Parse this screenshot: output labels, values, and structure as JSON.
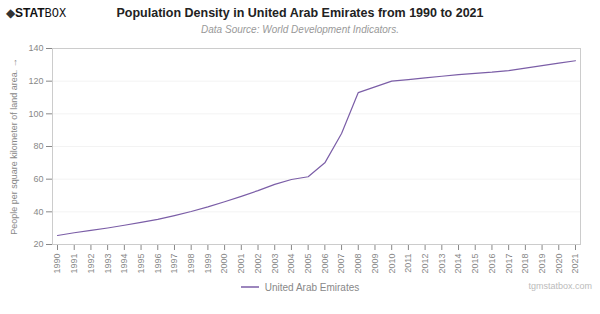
{
  "chart_data": {
    "type": "line",
    "title": "Population Density in United Arab Emirates from 1990 to 2021",
    "subtitle": "Data Source: World Development Indicators.",
    "ylabel": "People per square kilometer of land area.",
    "x": [
      1990,
      1991,
      1992,
      1993,
      1994,
      1995,
      1996,
      1997,
      1998,
      1999,
      2000,
      2001,
      2002,
      2003,
      2004,
      2005,
      2006,
      2007,
      2008,
      2009,
      2010,
      2011,
      2012,
      2013,
      2014,
      2015,
      2016,
      2017,
      2018,
      2019,
      2020,
      2021
    ],
    "series": [
      {
        "name": "United Arab Emirates",
        "color": "#7b5ea7",
        "values": [
          25.5,
          27.2,
          28.6,
          30.1,
          31.8,
          33.5,
          35.4,
          37.7,
          40.2,
          43.0,
          46.2,
          49.5,
          53.0,
          56.8,
          59.8,
          61.5,
          70.0,
          88.0,
          113.0,
          116.5,
          120.0,
          121.0,
          122.0,
          123.0,
          124.0,
          124.8,
          125.5,
          126.5,
          128.0,
          129.5,
          131.0,
          132.5
        ]
      }
    ],
    "xlim": [
      1989.7,
      2021.3
    ],
    "xticks": [
      1990,
      1991,
      1992,
      1993,
      1994,
      1995,
      1996,
      1997,
      1998,
      1999,
      2000,
      2001,
      2002,
      2003,
      2004,
      2005,
      2006,
      2007,
      2008,
      2009,
      2010,
      2011,
      2012,
      2013,
      2014,
      2015,
      2016,
      2017,
      2018,
      2019,
      2020,
      2021
    ],
    "ylim": [
      20,
      140
    ],
    "yticks": [
      20,
      40,
      60,
      80,
      100,
      120,
      140
    ],
    "grid": true,
    "legend": "bottom",
    "annotations": [
      "◆",
      "STAT",
      "BOX",
      "tgmstatbox.com"
    ]
  }
}
